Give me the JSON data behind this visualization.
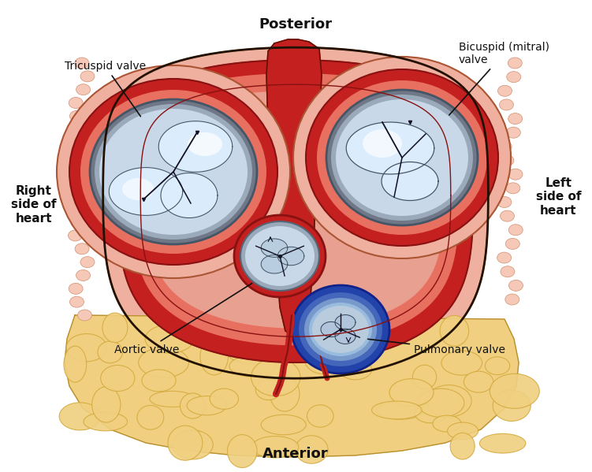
{
  "title_top": "Posterior",
  "title_bottom": "Anterior",
  "label_right_side": "Right\nside of\nheart",
  "label_left_side": "Left\nside of\nheart",
  "label_tricuspid": "Tricuspid valve",
  "label_bicuspid": "Bicuspid (mitral)\nvalve",
  "label_aortic": "Aortic valve",
  "label_pulmonary": "Pulmonary valve",
  "bg_color": "#ffffff",
  "fat_color": "#f0d080",
  "fat_dark": "#d4aa40",
  "tissue_pink": "#f0b0a0",
  "tissue_pink2": "#e89080",
  "tissue_bump": "#f5c8b8",
  "red_dark": "#c42020",
  "red_mid": "#d84040",
  "red_light": "#e87060",
  "salmon": "#e8a090",
  "gray_ring": "#707888",
  "gray_light": "#9aaabb",
  "valve_bg": "#c8d8e8",
  "valve_white": "#ddeeff",
  "valve_bright": "#eef5ff",
  "line_dark": "#111122",
  "blue_dark": "#2244aa",
  "blue_mid": "#4466bb",
  "blue_light": "#7799cc",
  "blue_bg": "#99bbdd",
  "title_fontsize": 13,
  "label_fontsize": 10,
  "side_fontsize": 11
}
